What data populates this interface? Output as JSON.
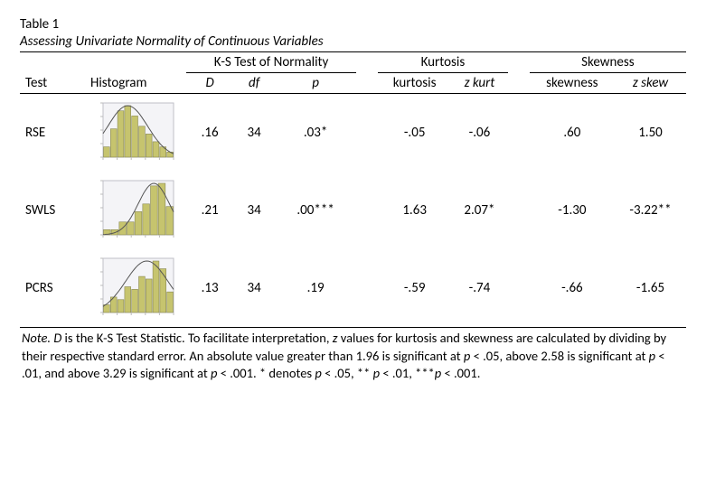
{
  "title": "Table 1",
  "subtitle": "Assessing Univariate Normality of Continuous Variables",
  "headers": {
    "test": "Test",
    "histogram": "Histogram",
    "ks_group": "K-S Test of Normality",
    "kurt_group": "Kurtosis",
    "skew_group": "Skewness",
    "D": "D",
    "df": "df",
    "p": "p",
    "kurtosis": "kurtosis",
    "zkurt": "z kurt",
    "skewness": "skewness",
    "zskew": "z skew"
  },
  "rows": [
    {
      "test": "RSE",
      "D": ".16",
      "df": "34",
      "p": ".03*",
      "kurtosis": "-.05",
      "zkurt": "-.06",
      "skewness": ".60",
      "zskew": "1.50",
      "hist": {
        "bars": [
          0.2,
          0.55,
          0.9,
          1.0,
          0.8,
          0.6,
          0.45,
          0.3,
          0.2,
          0.1
        ],
        "curve_peak_x": 0.35,
        "curve_sigma": 0.28
      }
    },
    {
      "test": "SWLS",
      "D": ".21",
      "df": "34",
      "p": ".00***",
      "kurtosis": "1.63",
      "zkurt": "2.07*",
      "skewness": "-1.30",
      "zskew": "-3.22**",
      "hist": {
        "bars": [
          0.1,
          0.1,
          0.25,
          0.25,
          0.45,
          0.6,
          0.95,
          1.0,
          0.55
        ],
        "curve_peak_x": 0.72,
        "curve_sigma": 0.22
      }
    },
    {
      "test": "PCRS",
      "D": ".13",
      "df": "34",
      "p": ".19",
      "kurtosis": "-.59",
      "zkurt": "-.74",
      "skewness": "-.66",
      "zskew": "-1.65",
      "hist": {
        "bars": [
          0.15,
          0.3,
          0.25,
          0.5,
          0.45,
          0.7,
          0.65,
          1.0,
          0.85,
          0.4
        ],
        "curve_peak_x": 0.62,
        "curve_sigma": 0.3
      }
    }
  ],
  "note_parts": {
    "lead": "Note. ",
    "t1": " is the K-S Test Statistic. To facilitate interpretation, ",
    "t2": " values for kurtosis and skewness are calculated by dividing by their respective standard error. An absolute value greater than 1.96 is significant at ",
    "t3": " < .05, above 2.58 is significant at ",
    "t4": " < .01, and above 3.29 is significant at ",
    "t5": " < .001. * denotes ",
    "t6": " < .05, ** ",
    "t7": " < .01, ***",
    "t8": " < .001.",
    "D": "D",
    "z": "z",
    "p": "p"
  },
  "style": {
    "hist_w": 96,
    "hist_h": 78,
    "plot_bg": "#f4f4f7",
    "plot_border": "#bfbfc7",
    "bar_fill": "#c6c46e",
    "bar_stroke": "#8a8a55",
    "curve_stroke": "#555555",
    "axis_stroke": "#888888",
    "tick_color": "#bbbbbb"
  }
}
